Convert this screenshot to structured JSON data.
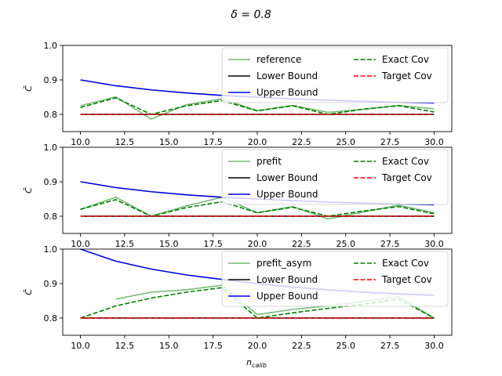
{
  "figure": {
    "suptitle": "δ = 0.8",
    "xlabel": "n_calib",
    "xlabel_main": "n",
    "xlabel_sub": "calib"
  },
  "colors": {
    "reference": "#77bb77",
    "lower": "#000000",
    "upper": "#0000dd",
    "exact": "#008000",
    "target": "#ff0000"
  },
  "chart_data": [
    {
      "type": "line",
      "ylabel": "C̄",
      "xlim": [
        9,
        31
      ],
      "ylim": [
        0.75,
        1.0
      ],
      "xticks": [
        "10.0",
        "12.5",
        "15.0",
        "17.5",
        "20.0",
        "22.5",
        "25.0",
        "27.5",
        "30.0"
      ],
      "xtick_values": [
        10,
        12.5,
        15,
        17.5,
        20,
        22.5,
        25,
        27.5,
        30
      ],
      "yticks": [
        "0.8",
        "0.9",
        "1.0"
      ],
      "ytick_values": [
        0.8,
        0.9,
        1.0
      ],
      "x": [
        10,
        12,
        14,
        16,
        18,
        20,
        22,
        24,
        26,
        28,
        30
      ],
      "legend": {
        "placement": "upper right",
        "ncol": 2
      },
      "series": [
        {
          "key": "reference",
          "name": "reference",
          "style": "solid",
          "alpha": 1,
          "values": [
            0.825,
            0.851,
            0.786,
            0.828,
            0.845,
            0.811,
            0.826,
            0.806,
            0.815,
            0.826,
            0.816
          ]
        },
        {
          "key": "lower",
          "name": "Lower Bound",
          "style": "solid",
          "alpha": 1,
          "values": [
            0.8,
            0.8,
            0.8,
            0.8,
            0.8,
            0.8,
            0.8,
            0.8,
            0.8,
            0.8,
            0.8
          ]
        },
        {
          "key": "upper",
          "name": "Upper Bound",
          "style": "solid",
          "alpha": 1,
          "values": [
            0.9,
            0.883,
            0.871,
            0.862,
            0.855,
            0.85,
            0.845,
            0.841,
            0.838,
            0.835,
            0.833
          ]
        },
        {
          "key": "exact",
          "name": "Exact Cov",
          "style": "dashed",
          "alpha": 1,
          "values": [
            0.82,
            0.848,
            0.8,
            0.825,
            0.84,
            0.81,
            0.825,
            0.8,
            0.815,
            0.825,
            0.807
          ]
        },
        {
          "key": "target",
          "name": "Target Cov",
          "style": "dashed",
          "alpha": 1,
          "values": [
            0.8,
            0.8,
            0.8,
            0.8,
            0.8,
            0.8,
            0.8,
            0.8,
            0.8,
            0.8,
            0.8
          ]
        }
      ]
    },
    {
      "type": "line",
      "ylabel": "C̄",
      "xlim": [
        9,
        31
      ],
      "ylim": [
        0.75,
        1.0
      ],
      "xticks": [
        "10.0",
        "12.5",
        "15.0",
        "17.5",
        "20.0",
        "22.5",
        "25.0",
        "27.5",
        "30.0"
      ],
      "xtick_values": [
        10,
        12.5,
        15,
        17.5,
        20,
        22.5,
        25,
        27.5,
        30
      ],
      "yticks": [
        "0.8",
        "0.9",
        "1.0"
      ],
      "ytick_values": [
        0.8,
        0.9,
        1.0
      ],
      "x": [
        10,
        12,
        14,
        16,
        18,
        20,
        22,
        24,
        26,
        28,
        30
      ],
      "legend": {
        "placement": "upper right",
        "ncol": 2
      },
      "series": [
        {
          "key": "reference",
          "name": "prefit",
          "style": "solid",
          "alpha": 1,
          "values": [
            0.82,
            0.855,
            0.8,
            0.83,
            0.855,
            0.81,
            0.828,
            0.792,
            0.812,
            0.832,
            0.81
          ]
        },
        {
          "key": "lower",
          "name": "Lower Bound",
          "style": "solid",
          "alpha": 1,
          "values": [
            0.8,
            0.8,
            0.8,
            0.8,
            0.8,
            0.8,
            0.8,
            0.8,
            0.8,
            0.8,
            0.8
          ]
        },
        {
          "key": "upper",
          "name": "Upper Bound",
          "style": "solid",
          "alpha": 1,
          "values": [
            0.9,
            0.883,
            0.871,
            0.862,
            0.855,
            0.85,
            0.845,
            0.841,
            0.838,
            0.835,
            0.833
          ]
        },
        {
          "key": "exact",
          "name": "Exact Cov",
          "style": "dashed",
          "alpha": 1,
          "values": [
            0.82,
            0.848,
            0.8,
            0.825,
            0.842,
            0.81,
            0.826,
            0.8,
            0.815,
            0.828,
            0.807
          ]
        },
        {
          "key": "target",
          "name": "Target Cov",
          "style": "dashed",
          "alpha": 1,
          "values": [
            0.8,
            0.8,
            0.8,
            0.8,
            0.8,
            0.8,
            0.8,
            0.8,
            0.8,
            0.8,
            0.8
          ]
        }
      ]
    },
    {
      "type": "line",
      "ylabel": "C̄",
      "xlim": [
        9,
        31
      ],
      "ylim": [
        0.75,
        1.0
      ],
      "xticks": [
        "10.0",
        "12.5",
        "15.0",
        "17.5",
        "20.0",
        "22.5",
        "25.0",
        "27.5",
        "30.0"
      ],
      "xtick_values": [
        10,
        12.5,
        15,
        17.5,
        20,
        22.5,
        25,
        27.5,
        30
      ],
      "yticks": [
        "0.8",
        "0.9",
        "1.0"
      ],
      "ytick_values": [
        0.8,
        0.9,
        1.0
      ],
      "x": [
        10,
        12,
        14,
        16,
        18,
        20,
        22,
        24,
        26,
        28,
        30
      ],
      "legend": {
        "placement": "upper right",
        "ncol": 2
      },
      "series": [
        {
          "key": "reference",
          "name": "prefit_asym",
          "style": "solid",
          "alpha": 1,
          "x": [
            12,
            14,
            16,
            18,
            20,
            22,
            24,
            26,
            28,
            30
          ],
          "values": [
            0.855,
            0.875,
            0.882,
            0.895,
            0.81,
            0.825,
            0.835,
            0.848,
            0.862,
            0.8
          ]
        },
        {
          "key": "lower",
          "name": "Lower Bound",
          "style": "solid",
          "alpha": 1,
          "values": [
            0.8,
            0.8,
            0.8,
            0.8,
            0.8,
            0.8,
            0.8,
            0.8,
            0.8,
            0.8,
            0.8
          ]
        },
        {
          "key": "upper",
          "name": "Upper Bound",
          "style": "solid",
          "alpha": 1,
          "values": [
            1.0,
            0.965,
            0.942,
            0.925,
            0.912,
            0.9,
            0.89,
            0.882,
            0.875,
            0.87,
            0.866
          ]
        },
        {
          "key": "exact",
          "name": "Exact Cov",
          "style": "dashed",
          "alpha": 1,
          "values": [
            0.8,
            0.835,
            0.858,
            0.875,
            0.888,
            0.8,
            0.815,
            0.828,
            0.84,
            0.855,
            0.8
          ]
        },
        {
          "key": "target",
          "name": "Target Cov",
          "style": "dashed",
          "alpha": 1,
          "values": [
            0.8,
            0.8,
            0.8,
            0.8,
            0.8,
            0.8,
            0.8,
            0.8,
            0.8,
            0.8,
            0.8
          ]
        }
      ]
    }
  ]
}
